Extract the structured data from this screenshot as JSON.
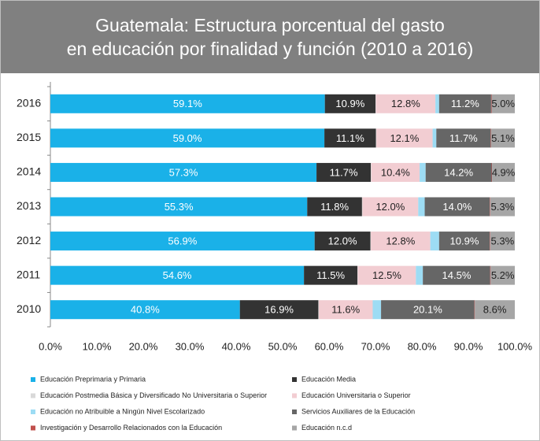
{
  "chart_data": {
    "type": "stacked_barh",
    "title": [
      "Guatemala: Estructura porcentual del gasto",
      "en educación por finalidad y función (2010 a 2016)"
    ],
    "categories": [
      "2016",
      "2015",
      "2014",
      "2013",
      "2012",
      "2011",
      "2010"
    ],
    "series": [
      {
        "name": "Educación Preprimaria y Primaria",
        "color": "#1ab1e8",
        "values": [
          59.1,
          59.0,
          57.3,
          55.3,
          56.9,
          54.6,
          40.8
        ],
        "value_labels": [
          "59.1%",
          "59.0%",
          "57.3%",
          "55.3%",
          "56.9%",
          "54.6%",
          "40.8%"
        ]
      },
      {
        "name": "Educación Media",
        "color": "#333333",
        "values": [
          10.9,
          11.1,
          11.7,
          11.8,
          12.0,
          11.5,
          16.9
        ],
        "value_labels": [
          "10.9%",
          "11.1%",
          "11.7%",
          "11.8%",
          "12.0%",
          "11.5%",
          "16.9%"
        ]
      },
      {
        "name": "Educación Postmedia Básica y Diversificado No Universitaria o Superior",
        "color": "#d9d9d9",
        "values": [
          0.1,
          0.1,
          0.1,
          0.1,
          0.1,
          0.1,
          0.1
        ]
      },
      {
        "name": "Educación Universitaria o Superior",
        "color": "#f2cdd2",
        "values": [
          12.8,
          12.1,
          10.4,
          12.0,
          12.8,
          12.5,
          11.6
        ],
        "value_labels": [
          "12.8%",
          "12.1%",
          "10.4%",
          "12.0%",
          "12.8%",
          "12.5%",
          "11.6%"
        ]
      },
      {
        "name": "Educación no Atribuible a Ningún Nivel Escolarizado",
        "color": "#9ddcf4",
        "values": [
          0.8,
          0.8,
          1.3,
          1.4,
          1.9,
          1.5,
          1.8
        ]
      },
      {
        "name": "Servicios Auxiliares de la Educación",
        "color": "#666666",
        "values": [
          11.2,
          11.7,
          14.2,
          14.0,
          10.9,
          14.5,
          20.1
        ],
        "value_labels": [
          "11.2%",
          "11.7%",
          "14.2%",
          "14.0%",
          "10.9%",
          "14.5%",
          "20.1%"
        ]
      },
      {
        "name": "Investigación y Desarrollo Relacionados con la Educación",
        "color": "#c0504d",
        "values": [
          0.1,
          0.1,
          0.1,
          0.1,
          0.1,
          0.1,
          0.1
        ]
      },
      {
        "name": "Educación n.c.d",
        "color": "#a6a6a6",
        "values": [
          5.0,
          5.1,
          4.9,
          5.3,
          5.3,
          5.2,
          8.6
        ],
        "value_labels": [
          "5.0%",
          "5.1%",
          "4.9%",
          "5.3%",
          "5.3%",
          "5.2%",
          "8.6%"
        ]
      }
    ],
    "xlim": [
      0,
      100
    ],
    "xticks": [
      {
        "value": 0,
        "label": "0.0%"
      },
      {
        "value": 10,
        "label": "10.0%"
      },
      {
        "value": 20,
        "label": "20.0%"
      },
      {
        "value": 30,
        "label": "30.0%"
      },
      {
        "value": 40,
        "label": "40.0%"
      },
      {
        "value": 50,
        "label": "50.0%"
      },
      {
        "value": 60,
        "label": "60.0%"
      },
      {
        "value": 70,
        "label": "70.0%"
      },
      {
        "value": 80,
        "label": "80.0%"
      },
      {
        "value": 90,
        "label": "90.0%"
      },
      {
        "value": 100,
        "label": "100.0%"
      }
    ],
    "grid": false,
    "legend": "bottom"
  }
}
